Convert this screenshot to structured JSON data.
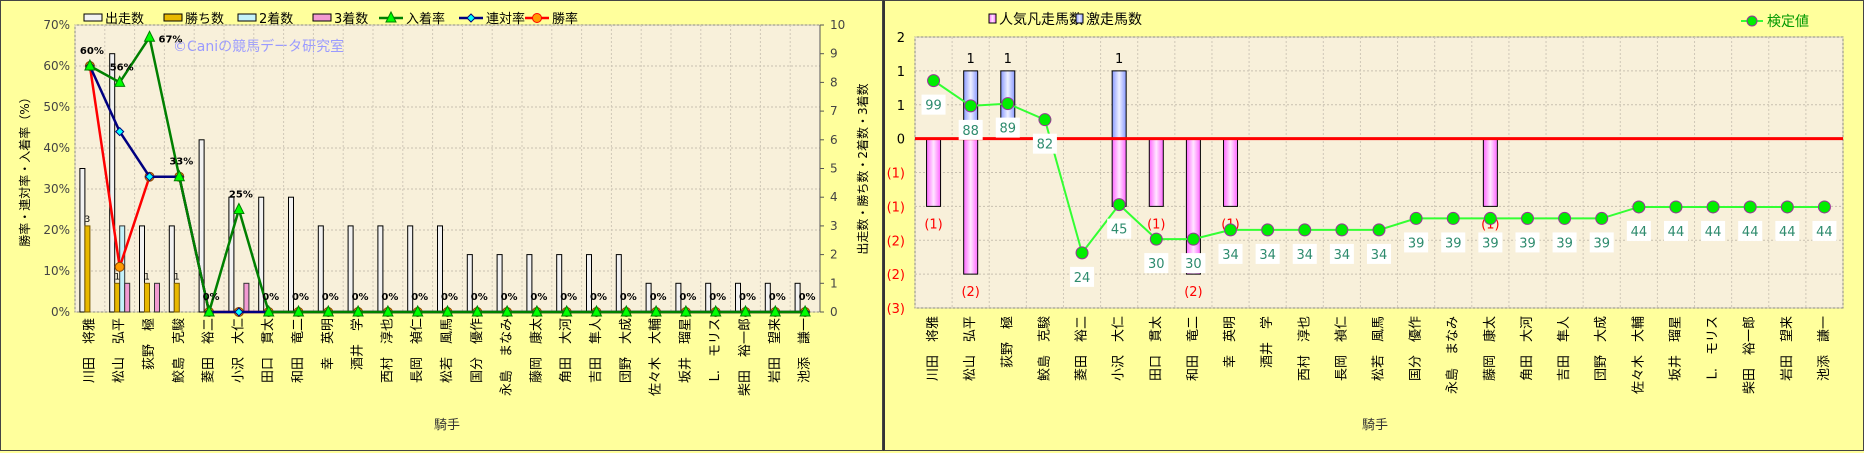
{
  "chart_data": [
    {
      "type": "bar+line",
      "categories": [
        "川田　将雅",
        "松山　弘平",
        "荻野　極",
        "鮫島　克駿",
        "菱田　裕二",
        "小沢　大仁",
        "田口　貫太",
        "和田　竜二",
        "幸　英明",
        "酒井　学",
        "西村　淳也",
        "長岡　禎仁",
        "松若　風馬",
        "国分　優作",
        "永島　まなみ",
        "藤岡　康太",
        "角田　大河",
        "吉田　隼人",
        "団野　大成",
        "佐々木　大輔",
        "坂井　瑠星",
        "L.　モリス",
        "柴田　裕一郎",
        "岩田　望来",
        "池添　謙一"
      ],
      "watermark": "©Caniの競馬データ研究室",
      "xlabel": "騎手",
      "ylabel": "勝率・連対率・入着率（%）",
      "y2label": "出走数・勝ち数・2着数・3着数",
      "ylim": [
        0,
        70
      ],
      "y_tick_labels": [
        "0%",
        "10%",
        "20%",
        "30%",
        "40%",
        "50%",
        "60%",
        "70%"
      ],
      "y2lim": [
        0,
        10
      ],
      "y2_tick_labels": [
        "0",
        "1",
        "2",
        "3",
        "4",
        "5",
        "6",
        "7",
        "8",
        "9",
        "10"
      ],
      "grid": true,
      "legend_position": "top",
      "series": [
        {
          "name": "出走数",
          "type": "bar",
          "axis": "right",
          "color": "#f2f2f2",
          "values": [
            5,
            9,
            3,
            3,
            6,
            4,
            4,
            4,
            3,
            3,
            3,
            3,
            3,
            2,
            2,
            2,
            2,
            2,
            2,
            1,
            1,
            1,
            1,
            1,
            1
          ]
        },
        {
          "name": "勝ち数",
          "type": "bar",
          "axis": "right",
          "color": "#e8b800",
          "values": [
            3,
            1,
            1,
            1,
            0,
            0,
            0,
            0,
            0,
            0,
            0,
            0,
            0,
            0,
            0,
            0,
            0,
            0,
            0,
            0,
            0,
            0,
            0,
            0,
            0
          ]
        },
        {
          "name": "2着数",
          "type": "bar",
          "axis": "right",
          "color": "#c4f2fa",
          "values": [
            0,
            3,
            0,
            0,
            0,
            0,
            0,
            0,
            0,
            0,
            0,
            0,
            0,
            0,
            0,
            0,
            0,
            0,
            0,
            0,
            0,
            0,
            0,
            0,
            0
          ]
        },
        {
          "name": "3着数",
          "type": "bar",
          "axis": "right",
          "color": "#f29ad2",
          "values": [
            0,
            1,
            1,
            0,
            0,
            1,
            0,
            0,
            0,
            0,
            0,
            0,
            0,
            0,
            0,
            0,
            0,
            0,
            0,
            0,
            0,
            0,
            0,
            0,
            0
          ]
        },
        {
          "name": "入着率",
          "type": "line",
          "axis": "left",
          "color": "#008000",
          "marker": "triangle",
          "marker_color": "#00ff00",
          "values": [
            60,
            56,
            67,
            33,
            0,
            25,
            0,
            0,
            0,
            0,
            0,
            0,
            0,
            0,
            0,
            0,
            0,
            0,
            0,
            0,
            0,
            0,
            0,
            0,
            0
          ],
          "data_labels": [
            "60%",
            "56%",
            "67%",
            "33%",
            "0%",
            "25%",
            "0%",
            "0%",
            "0%",
            "0%",
            "0%",
            "0%",
            "0%",
            "0%",
            "0%",
            "0%",
            "0%",
            "0%",
            "0%",
            "0%",
            "0%",
            "0%",
            "0%",
            "0%",
            "0%"
          ]
        },
        {
          "name": "連対率",
          "type": "line",
          "axis": "left",
          "color": "#000080",
          "marker": "diamond",
          "marker_color": "#00ffff",
          "values": [
            60,
            44,
            33,
            33,
            0,
            0,
            0,
            0,
            0,
            0,
            0,
            0,
            0,
            0,
            0,
            0,
            0,
            0,
            0,
            0,
            0,
            0,
            0,
            0,
            0
          ]
        },
        {
          "name": "勝率",
          "type": "line",
          "axis": "left",
          "color": "#ff0000",
          "marker": "circle",
          "marker_color": "#ff9900",
          "values": [
            60,
            11,
            33,
            33,
            0,
            0,
            0,
            0,
            0,
            0,
            0,
            0,
            0,
            0,
            0,
            0,
            0,
            0,
            0,
            0,
            0,
            0,
            0,
            0,
            0
          ]
        }
      ]
    },
    {
      "type": "bar+line",
      "categories": [
        "川田　将雅",
        "松山　弘平",
        "荻野　極",
        "鮫島　克駿",
        "菱田　裕二",
        "小沢　大仁",
        "田口　貫太",
        "和田　竜二",
        "幸　英明",
        "酒井　学",
        "西村　淳也",
        "長岡　禎仁",
        "松若　風馬",
        "国分　優作",
        "永島　まなみ",
        "藤岡　康太",
        "角田　大河",
        "吉田　隼人",
        "団野　大成",
        "佐々木　大輔",
        "坂井　瑠星",
        "L.　モリス",
        "柴田　裕一郎",
        "岩田　望来",
        "池添　謙一"
      ],
      "xlabel": "騎手",
      "ylim": [
        -2.5,
        1.5
      ],
      "y_ticks": [
        1.5,
        1,
        0.5,
        0,
        -0.5,
        -1,
        -1.5,
        -2,
        -2.5
      ],
      "y_tick_labels": [
        "2",
        "1",
        "1",
        "0",
        "(1)",
        "(1)",
        "(2)",
        "(2)",
        "(3)"
      ],
      "negative_label_color": "#ff0000",
      "zero_line_color": "#ff0000",
      "grid": true,
      "legend_position": "top",
      "series": [
        {
          "name": "人気凡走馬数",
          "type": "bar",
          "color": "#ff99ff",
          "values": [
            -1,
            -2,
            0,
            0,
            0,
            -1,
            -1,
            -2,
            -1,
            0,
            0,
            0,
            0,
            0,
            0,
            -1,
            0,
            0,
            0,
            0,
            0,
            0,
            0,
            0,
            0
          ],
          "data_labels": [
            "(1)",
            "(2)",
            "",
            "",
            "",
            "",
            "(1)",
            "(2)",
            "(1)",
            "",
            "",
            "",
            "",
            "",
            "",
            "(1)",
            "",
            "",
            "",
            "",
            "",
            "",
            "",
            "",
            ""
          ]
        },
        {
          "name": "激走馬数",
          "type": "bar",
          "color": "#aabbff",
          "values": [
            0,
            1,
            1,
            0,
            0,
            1,
            0,
            0,
            0,
            0,
            0,
            0,
            0,
            0,
            0,
            0,
            0,
            0,
            0,
            0,
            0,
            0,
            0,
            0,
            0
          ],
          "data_labels": [
            "",
            "1",
            "1",
            "",
            "",
            "1",
            "",
            "",
            "",
            "",
            "",
            "",
            "",
            "",
            "",
            "",
            "",
            "",
            "",
            "",
            "",
            "",
            "",
            "",
            ""
          ]
        },
        {
          "name": "検定値",
          "type": "line",
          "color": "#33ff33",
          "marker": "circle",
          "marker_color": "#00ee00",
          "label_color": "#2e8b6e",
          "values": [
            99,
            88,
            89,
            82,
            24,
            45,
            30,
            30,
            34,
            34,
            34,
            34,
            34,
            39,
            39,
            39,
            39,
            39,
            39,
            44,
            44,
            44,
            44,
            44,
            44
          ]
        }
      ]
    }
  ]
}
